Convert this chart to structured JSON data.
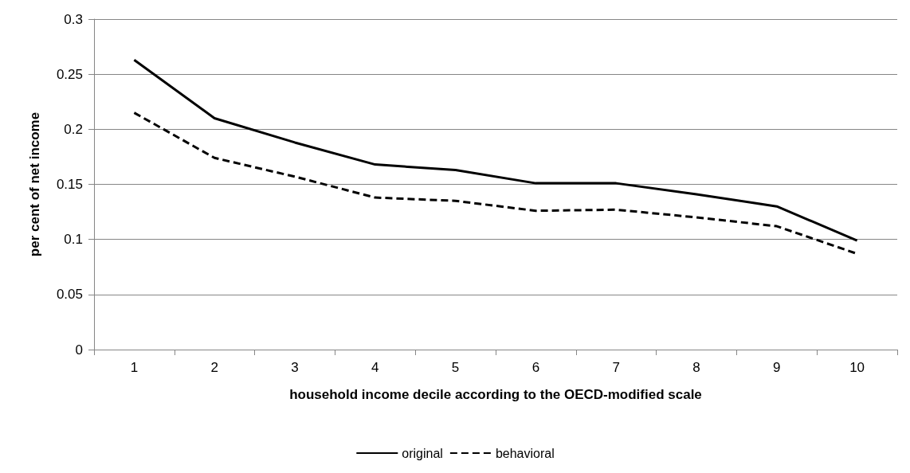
{
  "chart_data": {
    "type": "line",
    "xlabel": "household income decile according to the OECD-modified scale",
    "ylabel": "per cent of net income",
    "categories": [
      "1",
      "2",
      "3",
      "4",
      "5",
      "6",
      "7",
      "8",
      "9",
      "10"
    ],
    "series": [
      {
        "name": "original",
        "color": "#000000",
        "line_style": "solid",
        "values": [
          0.263,
          0.21,
          0.188,
          0.168,
          0.163,
          0.151,
          0.151,
          0.141,
          0.13,
          0.099
        ]
      },
      {
        "name": "behavioral",
        "color": "#000000",
        "line_style": "dashed",
        "values": [
          0.215,
          0.174,
          0.157,
          0.138,
          0.135,
          0.126,
          0.127,
          0.12,
          0.112,
          0.087
        ]
      }
    ],
    "ylim": [
      0,
      0.3
    ],
    "yticks": [
      0,
      0.05,
      0.1,
      0.15,
      0.2,
      0.25,
      0.3
    ],
    "grid": "y",
    "legend": "bottom",
    "marker": "none"
  }
}
